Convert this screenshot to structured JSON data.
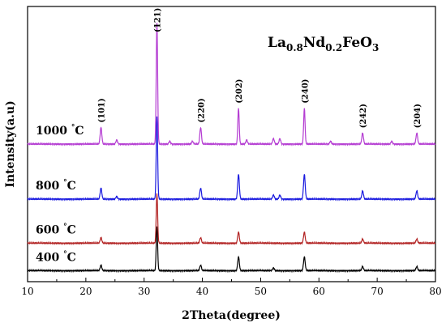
{
  "chart_data": {
    "type": "line",
    "xlabel": "2Theta(degree)",
    "ylabel": "Intensity(a.u)",
    "xlim": [
      10,
      80
    ],
    "x_ticks": [
      10,
      20,
      30,
      40,
      50,
      60,
      70,
      80
    ],
    "ylim": [
      0,
      100
    ],
    "y_ticks_shown": false,
    "grid": false,
    "formula": {
      "base1": "La",
      "sub1": "0.8",
      "base2": "Nd",
      "sub2": "0.2",
      "base3": "FeO",
      "sub3": "3"
    },
    "peak_labels": [
      {
        "text": "(101)",
        "x": 22.6
      },
      {
        "text": "(121)",
        "x": 32.2
      },
      {
        "text": "(220)",
        "x": 39.7
      },
      {
        "text": "(202)",
        "x": 46.2
      },
      {
        "text": "(240)",
        "x": 57.5
      },
      {
        "text": "(242)",
        "x": 67.5
      },
      {
        "text": "(204)",
        "x": 76.8
      }
    ],
    "series": [
      {
        "name": "400",
        "unit": "°C",
        "color": "#000000",
        "baseline": 4,
        "peaks": [
          [
            22.6,
            2
          ],
          [
            32.2,
            16
          ],
          [
            39.7,
            2
          ],
          [
            46.2,
            5
          ],
          [
            52.2,
            1
          ],
          [
            57.5,
            5
          ],
          [
            67.5,
            1.5
          ],
          [
            76.8,
            1.5
          ]
        ]
      },
      {
        "name": "600",
        "unit": "°C",
        "color": "#b22222",
        "baseline": 14,
        "peaks": [
          [
            22.6,
            2
          ],
          [
            32.2,
            18
          ],
          [
            39.7,
            2
          ],
          [
            46.2,
            4
          ],
          [
            57.5,
            4
          ],
          [
            67.5,
            1.5
          ],
          [
            76.8,
            1.5
          ]
        ]
      },
      {
        "name": "800",
        "unit": "°C",
        "color": "#1a1adf",
        "baseline": 30,
        "peaks": [
          [
            22.6,
            4
          ],
          [
            25.3,
            1
          ],
          [
            32.2,
            30
          ],
          [
            39.7,
            4
          ],
          [
            46.2,
            9
          ],
          [
            52.2,
            1.5
          ],
          [
            53.3,
            1.5
          ],
          [
            57.5,
            9
          ],
          [
            67.5,
            3
          ],
          [
            76.8,
            3
          ]
        ]
      },
      {
        "name": "1000",
        "unit": "°C",
        "color": "#b43cd2",
        "baseline": 50,
        "peaks": [
          [
            22.6,
            6
          ],
          [
            25.3,
            1.5
          ],
          [
            32.2,
            44
          ],
          [
            34.4,
            1
          ],
          [
            38.3,
            1
          ],
          [
            39.7,
            6
          ],
          [
            46.2,
            13
          ],
          [
            47.6,
            1.5
          ],
          [
            52.2,
            2
          ],
          [
            53.3,
            2
          ],
          [
            57.5,
            13
          ],
          [
            62.0,
            1
          ],
          [
            67.5,
            4
          ],
          [
            72.5,
            1
          ],
          [
            76.8,
            4
          ]
        ]
      }
    ]
  }
}
